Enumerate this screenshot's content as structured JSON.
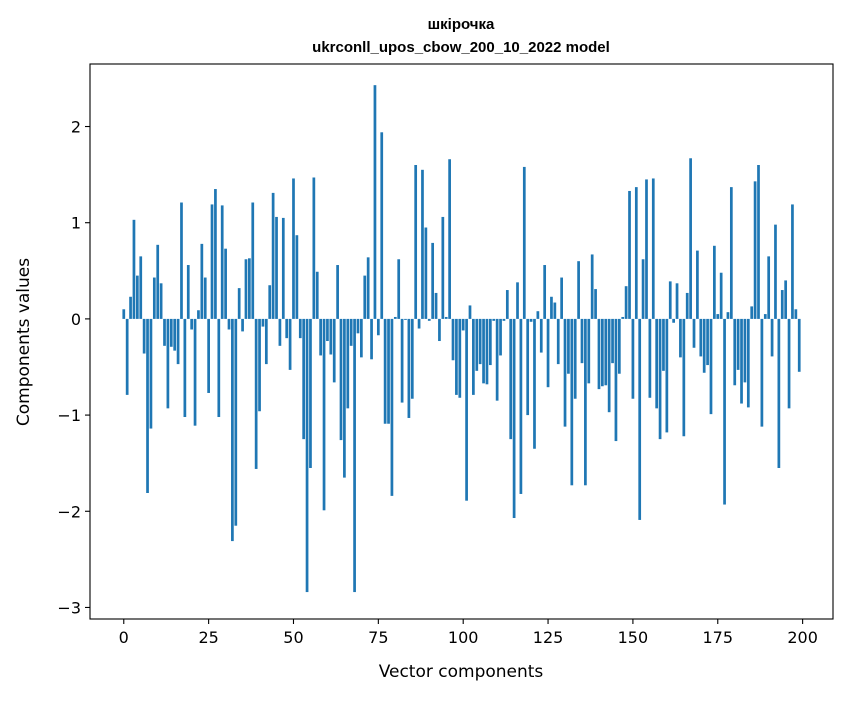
{
  "colors": {
    "bar": "#1f77b4",
    "axis": "#000000",
    "background": "#ffffff"
  },
  "chart_data": {
    "type": "bar",
    "title": "шкірочка\nukrconll_upos_cbow_200_10_2022 model",
    "title_lines": [
      "шкірочка",
      "ukrconll_upos_cbow_200_10_2022 model"
    ],
    "xlabel": "Vector components",
    "ylabel": "Components values",
    "xlim": [
      -9.95,
      208.95
    ],
    "ylim": [
      -3.12,
      2.65
    ],
    "xticks": [
      0,
      25,
      50,
      75,
      100,
      125,
      150,
      175,
      200
    ],
    "xtick_labels": [
      "0",
      "25",
      "50",
      "75",
      "100",
      "125",
      "150",
      "175",
      "200"
    ],
    "yticks": [
      -3,
      -2,
      -1,
      0,
      1,
      2
    ],
    "ytick_labels": [
      "−3",
      "−2",
      "−1",
      "0",
      "1",
      "2"
    ],
    "grid": false,
    "x": [
      0,
      1,
      2,
      3,
      4,
      5,
      6,
      7,
      8,
      9,
      10,
      11,
      12,
      13,
      14,
      15,
      16,
      17,
      18,
      19,
      20,
      21,
      22,
      23,
      24,
      25,
      26,
      27,
      28,
      29,
      30,
      31,
      32,
      33,
      34,
      35,
      36,
      37,
      38,
      39,
      40,
      41,
      42,
      43,
      44,
      45,
      46,
      47,
      48,
      49,
      50,
      51,
      52,
      53,
      54,
      55,
      56,
      57,
      58,
      59,
      60,
      61,
      62,
      63,
      64,
      65,
      66,
      67,
      68,
      69,
      70,
      71,
      72,
      73,
      74,
      75,
      76,
      77,
      78,
      79,
      80,
      81,
      82,
      83,
      84,
      85,
      86,
      87,
      88,
      89,
      90,
      91,
      92,
      93,
      94,
      95,
      96,
      97,
      98,
      99,
      100,
      101,
      102,
      103,
      104,
      105,
      106,
      107,
      108,
      109,
      110,
      111,
      112,
      113,
      114,
      115,
      116,
      117,
      118,
      119,
      120,
      121,
      122,
      123,
      124,
      125,
      126,
      127,
      128,
      129,
      130,
      131,
      132,
      133,
      134,
      135,
      136,
      137,
      138,
      139,
      140,
      141,
      142,
      143,
      144,
      145,
      146,
      147,
      148,
      149,
      150,
      151,
      152,
      153,
      154,
      155,
      156,
      157,
      158,
      159,
      160,
      161,
      162,
      163,
      164,
      165,
      166,
      167,
      168,
      169,
      170,
      171,
      172,
      173,
      174,
      175,
      176,
      177,
      178,
      179,
      180,
      181,
      182,
      183,
      184,
      185,
      186,
      187,
      188,
      189,
      190,
      191,
      192,
      193,
      194,
      195,
      196,
      197,
      198,
      199
    ],
    "values": [
      0.1,
      -0.79,
      0.23,
      1.03,
      0.45,
      0.65,
      -0.36,
      -1.81,
      -1.14,
      0.43,
      0.77,
      0.37,
      -0.28,
      -0.93,
      -0.29,
      -0.33,
      -0.47,
      1.21,
      -1.02,
      0.56,
      -0.11,
      -1.11,
      0.09,
      0.78,
      0.43,
      -0.77,
      1.19,
      1.35,
      -1.02,
      1.18,
      0.73,
      -0.11,
      -2.31,
      -2.15,
      0.32,
      -0.13,
      0.62,
      0.63,
      1.21,
      -1.56,
      -0.96,
      -0.08,
      -0.47,
      0.35,
      1.31,
      1.06,
      -0.28,
      1.05,
      -0.2,
      -0.53,
      1.46,
      0.87,
      -0.2,
      -1.25,
      -2.84,
      -1.55,
      1.47,
      0.49,
      -0.38,
      -1.99,
      -0.23,
      -0.37,
      -0.66,
      0.56,
      -1.26,
      -1.65,
      -0.93,
      -0.28,
      -2.84,
      -0.15,
      -0.4,
      0.45,
      0.64,
      -0.42,
      2.43,
      -0.17,
      1.94,
      -1.09,
      -1.09,
      -1.84,
      0.02,
      0.62,
      -0.87,
      -0.01,
      -1.03,
      -0.83,
      1.6,
      -0.1,
      1.55,
      0.95,
      -0.02,
      0.79,
      0.27,
      -0.23,
      1.06,
      0.02,
      1.66,
      -0.43,
      -0.79,
      -0.82,
      -0.12,
      -1.89,
      0.14,
      -0.79,
      -0.54,
      -0.47,
      -0.67,
      -0.68,
      -0.48,
      -0.02,
      -0.85,
      -0.38,
      -0.02,
      0.3,
      -1.25,
      -2.07,
      0.38,
      -1.82,
      1.58,
      -1.0,
      -0.03,
      -1.35,
      0.08,
      -0.35,
      0.56,
      -0.71,
      0.23,
      0.17,
      -0.47,
      0.43,
      -1.12,
      -0.57,
      -1.73,
      -0.83,
      0.6,
      -0.46,
      -1.73,
      -0.67,
      0.67,
      0.31,
      -0.73,
      -0.7,
      -0.69,
      -0.97,
      -0.46,
      -1.27,
      -0.57,
      0.02,
      0.34,
      1.33,
      -0.83,
      1.37,
      -2.09,
      0.62,
      1.45,
      -0.82,
      1.46,
      -0.93,
      -1.25,
      -0.54,
      -1.18,
      0.39,
      -0.04,
      0.37,
      -0.4,
      -1.22,
      0.27,
      1.67,
      -0.3,
      0.71,
      -0.39,
      -0.56,
      -0.48,
      -0.99,
      0.76,
      0.05,
      0.48,
      -1.93,
      0.07,
      1.37,
      -0.69,
      -0.53,
      -0.88,
      -0.66,
      -0.92,
      0.13,
      1.43,
      1.6,
      -1.12,
      0.05,
      0.65,
      -0.39,
      0.98,
      -1.55,
      0.3,
      0.4,
      -0.93,
      1.19,
      0.1,
      -0.55
    ]
  }
}
